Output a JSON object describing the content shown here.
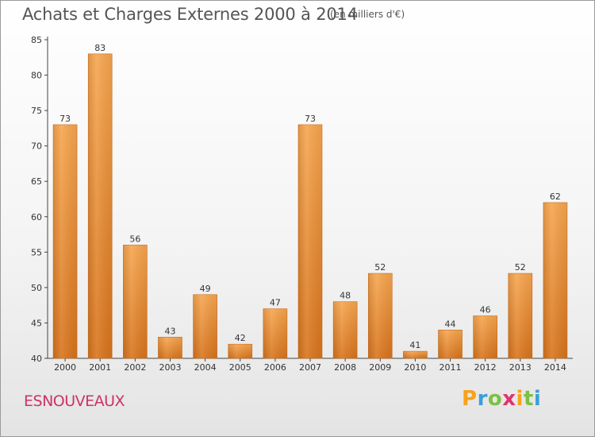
{
  "chart_data": {
    "type": "bar",
    "title": "Achats et Charges Externes 2000 à 2014",
    "subtitle": "(en milliers d'€)",
    "categories": [
      "2000",
      "2001",
      "2002",
      "2003",
      "2004",
      "2005",
      "2006",
      "2007",
      "2008",
      "2009",
      "2010",
      "2011",
      "2012",
      "2013",
      "2014"
    ],
    "values": [
      73,
      83,
      56,
      43,
      49,
      42,
      47,
      73,
      48,
      52,
      41,
      44,
      46,
      52,
      62
    ],
    "ylim": [
      40,
      85
    ],
    "yticks": [
      40,
      45,
      50,
      55,
      60,
      65,
      70,
      75,
      80,
      85
    ],
    "grid": false,
    "bar_color": "#f0943a"
  },
  "footer": {
    "commune": "ESNOUVEAUX"
  },
  "logo": {
    "letters": [
      "P",
      "r",
      "o",
      "x",
      "i",
      "t",
      "i"
    ],
    "colors": [
      "#f7a21b",
      "#3b9fd8",
      "#7cc142",
      "#e0336e",
      "#f7a21b",
      "#7cc142",
      "#3b9fd8"
    ]
  }
}
